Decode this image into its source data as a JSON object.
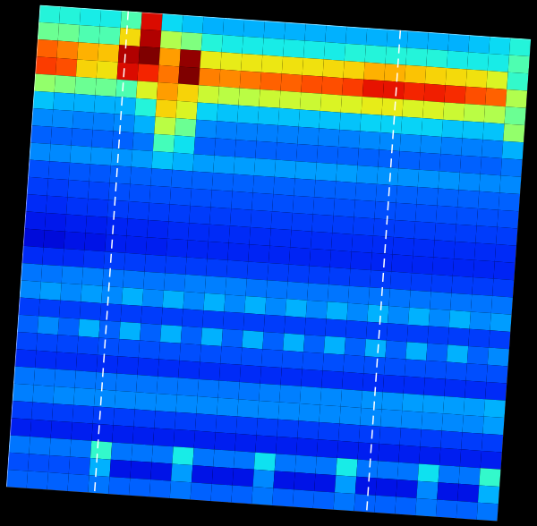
{
  "chart_data": {
    "type": "heatmap",
    "color": "jet",
    "tick_labels": false,
    "xlim": [
      0,
      24
    ],
    "ylim": [
      0,
      28
    ],
    "zlim": [
      0,
      100
    ],
    "events": [
      4.3,
      17.6
    ],
    "cells": [
      [
        40,
        40,
        38,
        38,
        45,
        90,
        35,
        32,
        30,
        30,
        30,
        30,
        30,
        30,
        30,
        30,
        30,
        30,
        30,
        30,
        30,
        32,
        35,
        40
      ],
      [
        48,
        48,
        45,
        45,
        65,
        95,
        55,
        50,
        40,
        38,
        38,
        38,
        38,
        38,
        38,
        40,
        40,
        40,
        40,
        40,
        38,
        38,
        38,
        45
      ],
      [
        78,
        75,
        70,
        68,
        95,
        100,
        72,
        98,
        62,
        62,
        63,
        63,
        64,
        64,
        65,
        66,
        70,
        70,
        68,
        66,
        65,
        64,
        60,
        42
      ],
      [
        82,
        80,
        66,
        64,
        90,
        85,
        76,
        100,
        75,
        74,
        76,
        78,
        78,
        80,
        80,
        82,
        88,
        88,
        85,
        86,
        84,
        80,
        78,
        55
      ],
      [
        52,
        50,
        48,
        48,
        45,
        60,
        72,
        66,
        58,
        56,
        56,
        58,
        58,
        58,
        60,
        60,
        62,
        62,
        60,
        60,
        58,
        56,
        55,
        48
      ],
      [
        32,
        30,
        30,
        30,
        30,
        40,
        66,
        60,
        34,
        32,
        32,
        32,
        32,
        32,
        32,
        32,
        34,
        34,
        34,
        34,
        32,
        32,
        32,
        52
      ],
      [
        26,
        26,
        25,
        25,
        26,
        30,
        56,
        48,
        26,
        25,
        25,
        25,
        25,
        25,
        25,
        25,
        26,
        26,
        26,
        26,
        25,
        25,
        25,
        30
      ],
      [
        22,
        22,
        22,
        22,
        22,
        24,
        44,
        36,
        22,
        22,
        22,
        22,
        22,
        22,
        22,
        22,
        22,
        22,
        22,
        22,
        22,
        22,
        22,
        24
      ],
      [
        26,
        26,
        27,
        27,
        27,
        28,
        32,
        30,
        28,
        28,
        28,
        28,
        28,
        28,
        28,
        28,
        27,
        27,
        27,
        27,
        27,
        26,
        26,
        26
      ],
      [
        20,
        20,
        21,
        21,
        22,
        22,
        22,
        22,
        22,
        22,
        22,
        22,
        22,
        22,
        22,
        22,
        22,
        22,
        22,
        22,
        22,
        22,
        22,
        22
      ],
      [
        18,
        18,
        19,
        19,
        20,
        20,
        20,
        20,
        20,
        20,
        20,
        20,
        20,
        20,
        20,
        20,
        20,
        20,
        20,
        20,
        20,
        20,
        20,
        20
      ],
      [
        16,
        16,
        17,
        17,
        18,
        18,
        18,
        18,
        18,
        18,
        18,
        18,
        18,
        18,
        18,
        18,
        18,
        18,
        18,
        18,
        18,
        18,
        18,
        18
      ],
      [
        13,
        13,
        14,
        14,
        15,
        15,
        15,
        16,
        16,
        16,
        16,
        16,
        16,
        16,
        16,
        16,
        16,
        16,
        16,
        16,
        16,
        16,
        16,
        16
      ],
      [
        10,
        10,
        12,
        12,
        14,
        14,
        14,
        15,
        15,
        15,
        15,
        15,
        15,
        15,
        15,
        15,
        15,
        15,
        15,
        15,
        15,
        15,
        15,
        15
      ],
      [
        16,
        16,
        16,
        17,
        18,
        18,
        18,
        18,
        18,
        18,
        18,
        18,
        18,
        18,
        18,
        18,
        18,
        18,
        18,
        18,
        18,
        18,
        18,
        18
      ],
      [
        24,
        24,
        25,
        25,
        24,
        24,
        24,
        24,
        25,
        25,
        25,
        24,
        24,
        24,
        24,
        24,
        24,
        24,
        24,
        24,
        24,
        24,
        24,
        24
      ],
      [
        26,
        28,
        26,
        28,
        26,
        30,
        26,
        30,
        26,
        30,
        26,
        30,
        26,
        30,
        26,
        30,
        26,
        30,
        26,
        30,
        26,
        30,
        26,
        28
      ],
      [
        18,
        18,
        18,
        18,
        18,
        18,
        18,
        18,
        18,
        18,
        18,
        18,
        18,
        18,
        18,
        18,
        18,
        18,
        18,
        18,
        18,
        18,
        18,
        18
      ],
      [
        22,
        26,
        22,
        30,
        22,
        30,
        22,
        30,
        22,
        30,
        22,
        30,
        22,
        30,
        22,
        30,
        22,
        30,
        22,
        30,
        22,
        30,
        22,
        26
      ],
      [
        19,
        19,
        19,
        19,
        20,
        20,
        20,
        20,
        20,
        20,
        20,
        20,
        20,
        20,
        20,
        20,
        20,
        20,
        20,
        20,
        20,
        20,
        20,
        20
      ],
      [
        16,
        16,
        16,
        16,
        16,
        16,
        16,
        16,
        16,
        16,
        16,
        16,
        16,
        16,
        16,
        16,
        16,
        16,
        16,
        16,
        16,
        16,
        16,
        16
      ],
      [
        24,
        24,
        24,
        24,
        24,
        24,
        24,
        24,
        24,
        24,
        24,
        24,
        25,
        25,
        26,
        26,
        26,
        27,
        27,
        28,
        28,
        28,
        28,
        30
      ],
      [
        25,
        25,
        26,
        26,
        26,
        26,
        26,
        26,
        26,
        26,
        26,
        26,
        26,
        26,
        26,
        26,
        26,
        26,
        26,
        26,
        26,
        26,
        26,
        28
      ],
      [
        18,
        18,
        18,
        18,
        18,
        18,
        18,
        18,
        18,
        18,
        18,
        18,
        18,
        18,
        18,
        18,
        18,
        18,
        18,
        18,
        18,
        18,
        18,
        18
      ],
      [
        14,
        14,
        14,
        14,
        14,
        14,
        14,
        14,
        14,
        14,
        14,
        14,
        14,
        14,
        14,
        14,
        14,
        14,
        14,
        14,
        14,
        14,
        14,
        14
      ],
      [
        24,
        24,
        24,
        24,
        42,
        24,
        24,
        24,
        38,
        24,
        24,
        24,
        36,
        24,
        24,
        24,
        38,
        24,
        24,
        24,
        36,
        24,
        24,
        42
      ],
      [
        20,
        20,
        20,
        20,
        30,
        12,
        12,
        12,
        28,
        12,
        12,
        12,
        26,
        12,
        12,
        12,
        28,
        12,
        12,
        12,
        26,
        12,
        12,
        30
      ],
      [
        22,
        22,
        22,
        22,
        24,
        22,
        22,
        22,
        24,
        22,
        22,
        22,
        24,
        22,
        22,
        22,
        24,
        22,
        22,
        22,
        24,
        22,
        22,
        24
      ]
    ]
  }
}
